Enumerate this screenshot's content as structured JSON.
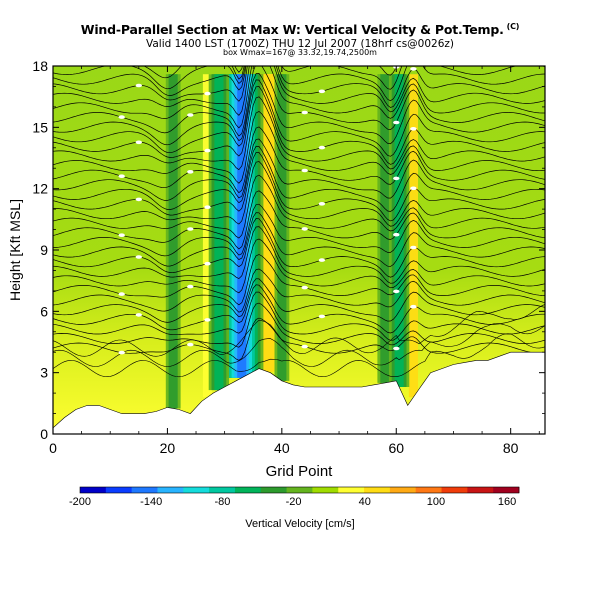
{
  "chart_data": {
    "type": "heatmap",
    "title": "Wind-Parallel Section at Max W: Vertical Velocity & Pot.Temp.",
    "title_mark": "(C)",
    "subtitle_1": "Valid 1400 LST (1700Z) THU 12 Jul 2007 (18hrf cs@0026z)",
    "subtitle_2": "box Wmax=167@ 33.32,19.74,2500m",
    "xlabel": "Grid Point",
    "ylabel": "Height [Kft MSL]",
    "xlim": [
      0,
      86
    ],
    "ylim": [
      0,
      18
    ],
    "x_ticks": [
      "0",
      "20",
      "40",
      "60",
      "80"
    ],
    "y_ticks": [
      "0",
      "3",
      "6",
      "9",
      "12",
      "15",
      "18"
    ],
    "colorbar": {
      "label": "Vertical Velocity [cm/s]",
      "ticks": [
        "-200",
        "-140",
        "-80",
        "-20",
        "40",
        "100",
        "160"
      ],
      "range": [
        -200,
        170
      ],
      "colors": [
        "#0000c8",
        "#0a3cff",
        "#1e78ff",
        "#28b4ff",
        "#14dcdc",
        "#00c8a0",
        "#00b45a",
        "#2d9b2d",
        "#64b41e",
        "#a0dc00",
        "#ffff32",
        "#ffdc14",
        "#ffaa14",
        "#ff7814",
        "#f03c0a",
        "#c81414",
        "#a0001e"
      ]
    },
    "terrain_height_kft": [
      [
        0,
        0.3
      ],
      [
        2,
        0.8
      ],
      [
        4,
        1.2
      ],
      [
        6,
        1.4
      ],
      [
        8,
        1.4
      ],
      [
        10,
        1.2
      ],
      [
        12,
        1.0
      ],
      [
        14,
        1.0
      ],
      [
        16,
        1.0
      ],
      [
        18,
        1.1
      ],
      [
        20,
        1.3
      ],
      [
        22,
        1.2
      ],
      [
        24,
        1.0
      ],
      [
        26,
        1.6
      ],
      [
        28,
        2.0
      ],
      [
        30,
        2.3
      ],
      [
        32,
        2.6
      ],
      [
        34,
        2.9
      ],
      [
        36,
        3.2
      ],
      [
        38,
        3.0
      ],
      [
        40,
        2.6
      ],
      [
        42,
        2.4
      ],
      [
        44,
        2.3
      ],
      [
        46,
        2.3
      ],
      [
        48,
        2.3
      ],
      [
        50,
        2.3
      ],
      [
        52,
        2.3
      ],
      [
        54,
        2.3
      ],
      [
        56,
        2.4
      ],
      [
        58,
        2.5
      ],
      [
        60,
        2.6
      ],
      [
        61,
        2.0
      ],
      [
        62,
        1.4
      ],
      [
        64,
        2.2
      ],
      [
        66,
        3.0
      ],
      [
        68,
        3.2
      ],
      [
        70,
        3.4
      ],
      [
        72,
        3.5
      ],
      [
        74,
        3.6
      ],
      [
        76,
        3.6
      ],
      [
        78,
        3.8
      ],
      [
        80,
        4.0
      ],
      [
        82,
        4.0
      ],
      [
        84,
        4.0
      ],
      [
        86,
        4.0
      ]
    ],
    "updraft_cores": [
      {
        "x": 35.5,
        "w_cm_s": 167
      },
      {
        "x": 37.5,
        "w_cm_s": 60
      },
      {
        "x": 27,
        "w_cm_s": 30
      },
      {
        "x": 63,
        "w_cm_s": 50
      }
    ],
    "downdraft_cores": [
      {
        "x": 33,
        "w_cm_s": -140
      },
      {
        "x": 29,
        "w_cm_s": -60
      },
      {
        "x": 58,
        "w_cm_s": -50
      },
      {
        "x": 60.5,
        "w_cm_s": -60
      },
      {
        "x": 40,
        "w_cm_s": -40
      },
      {
        "x": 21,
        "w_cm_s": -40
      }
    ],
    "grid": false
  }
}
